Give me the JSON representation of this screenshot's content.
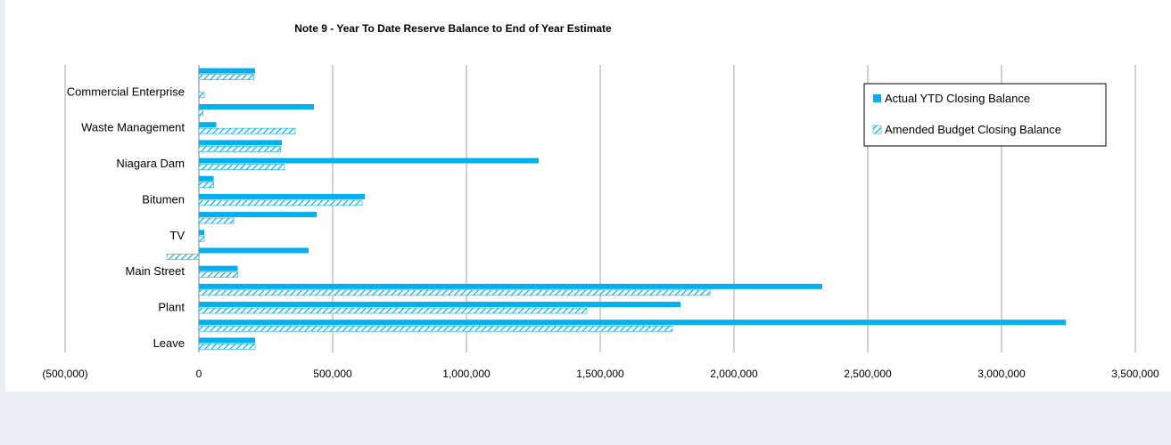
{
  "chart_data": {
    "type": "bar",
    "orientation": "horizontal",
    "title": "Note 9 - Year To Date Reserve Balance to End of Year Estimate",
    "xlabel": "",
    "ylabel": "",
    "xlim": [
      -500000,
      3500000
    ],
    "x_ticks": [
      "(500,000)",
      "0",
      "500,000",
      "1,000,000",
      "1,500,000",
      "2,000,000",
      "2,500,000",
      "3,000,000",
      "3,500,000"
    ],
    "grid": "vertical",
    "legend_position": "top-right",
    "categories": [
      "",
      "Commercial Enterprise",
      "",
      "Waste Management",
      "",
      "Niagara Dam",
      "",
      "Bitumen",
      "",
      "TV",
      "",
      "Main Street",
      "",
      "Plant",
      "",
      "Leave"
    ],
    "series": [
      {
        "name": "Actual YTD Closing Balance",
        "color": "#00b0f0",
        "pattern": "solid",
        "values": [
          210000,
          0,
          430000,
          65000,
          310000,
          1270000,
          55000,
          620000,
          440000,
          20000,
          410000,
          145000,
          2330000,
          1800000,
          3240000,
          210000
        ]
      },
      {
        "name": "Amended Budget Closing Balance",
        "color": "#00b0f0",
        "pattern": "hatched",
        "values": [
          205000,
          20000,
          15000,
          360000,
          305000,
          320000,
          55000,
          610000,
          130000,
          20000,
          -120000,
          145000,
          1910000,
          1450000,
          1770000,
          210000
        ]
      }
    ]
  }
}
